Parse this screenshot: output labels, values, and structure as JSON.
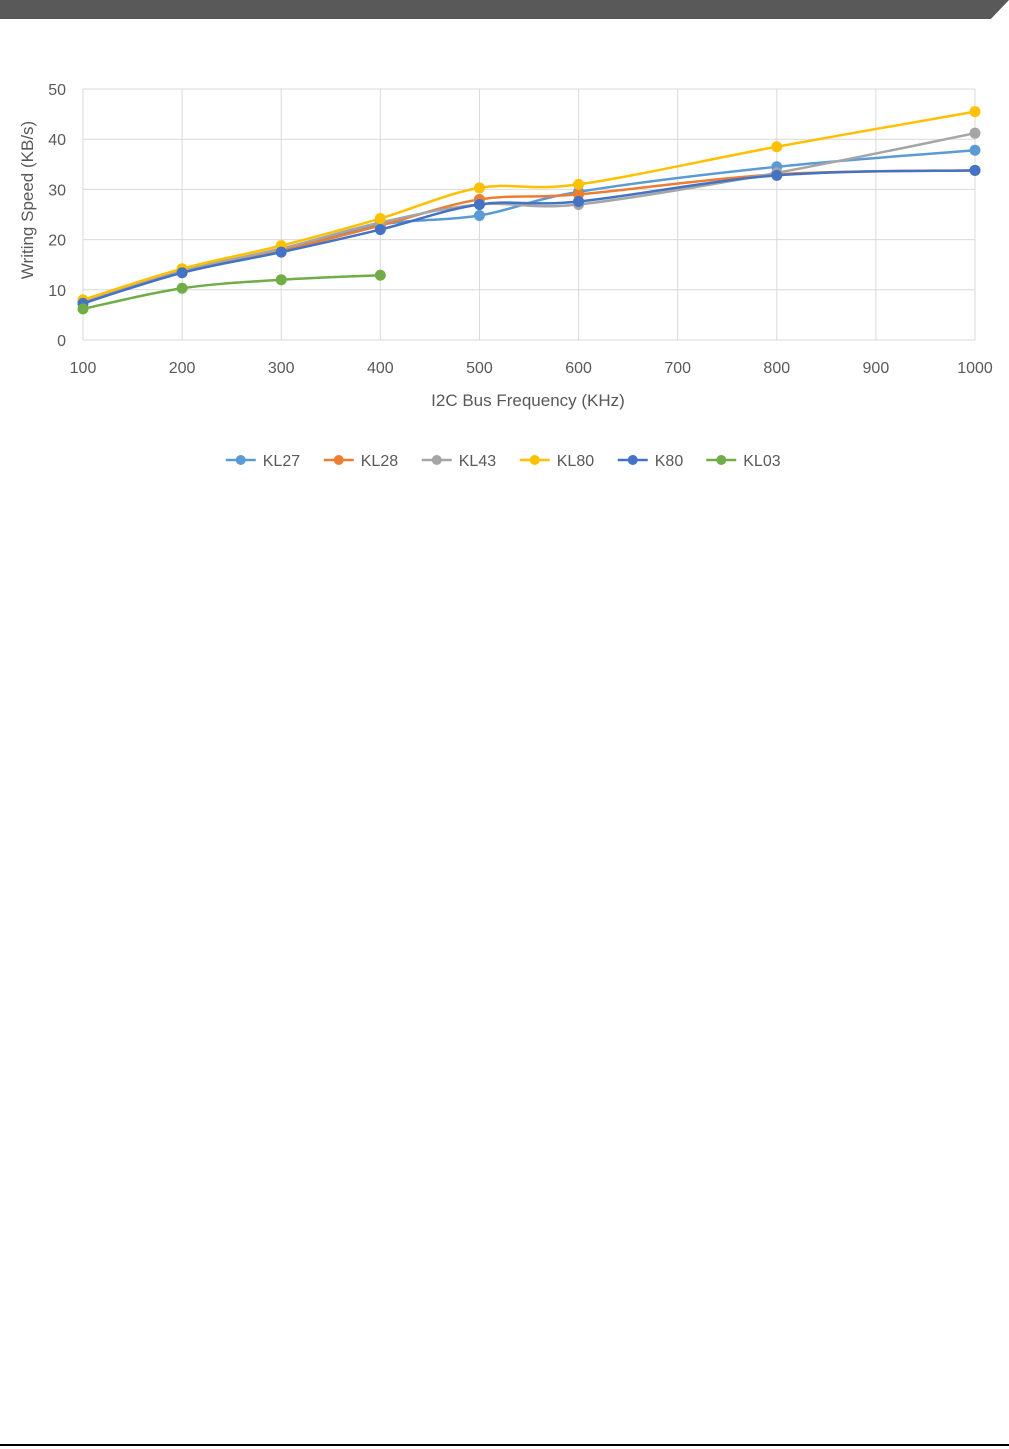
{
  "page": {
    "header_band_color": "#595959"
  },
  "chart_data": {
    "type": "line",
    "title": "",
    "xlabel": "I2C Bus Frequency (KHz)",
    "ylabel": "Writing Speed (KB/s)",
    "x_ticks": [
      100,
      200,
      300,
      400,
      500,
      600,
      700,
      800,
      900,
      1000
    ],
    "y_ticks": [
      0,
      10,
      20,
      30,
      40,
      50
    ],
    "xlim": [
      100,
      1000
    ],
    "ylim": [
      0,
      50
    ],
    "grid": true,
    "legend_position": "bottom",
    "series": [
      {
        "name": "KL27",
        "color": "#5b9bd5",
        "x": [
          100,
          200,
          300,
          400,
          500,
          600,
          800,
          1000
        ],
        "y": [
          7.5,
          13.8,
          18.0,
          23.0,
          24.8,
          29.5,
          34.5,
          37.8
        ]
      },
      {
        "name": "KL28",
        "color": "#ed7d31",
        "x": [
          100,
          200,
          300,
          400,
          500,
          600,
          800,
          1000
        ],
        "y": [
          7.4,
          13.5,
          17.8,
          22.8,
          28.0,
          29.0,
          33.0,
          33.8
        ]
      },
      {
        "name": "KL43",
        "color": "#a5a5a5",
        "x": [
          100,
          200,
          300,
          400,
          500,
          600,
          800,
          1000
        ],
        "y": [
          7.8,
          13.8,
          18.2,
          23.4,
          27.0,
          27.0,
          33.3,
          41.2
        ]
      },
      {
        "name": "KL80",
        "color": "#ffc000",
        "x": [
          100,
          200,
          300,
          400,
          500,
          600,
          800,
          1000
        ],
        "y": [
          8.0,
          14.2,
          18.8,
          24.2,
          30.3,
          31.0,
          38.5,
          45.5
        ]
      },
      {
        "name": "K80",
        "color": "#4472c4",
        "x": [
          100,
          200,
          300,
          400,
          500,
          600,
          800,
          1000
        ],
        "y": [
          7.3,
          13.4,
          17.5,
          22.0,
          27.0,
          27.6,
          32.8,
          33.8
        ]
      },
      {
        "name": "KL03",
        "color": "#70ad47",
        "x": [
          100,
          200,
          300,
          400
        ],
        "y": [
          6.2,
          10.3,
          12.0,
          12.9
        ]
      }
    ]
  }
}
